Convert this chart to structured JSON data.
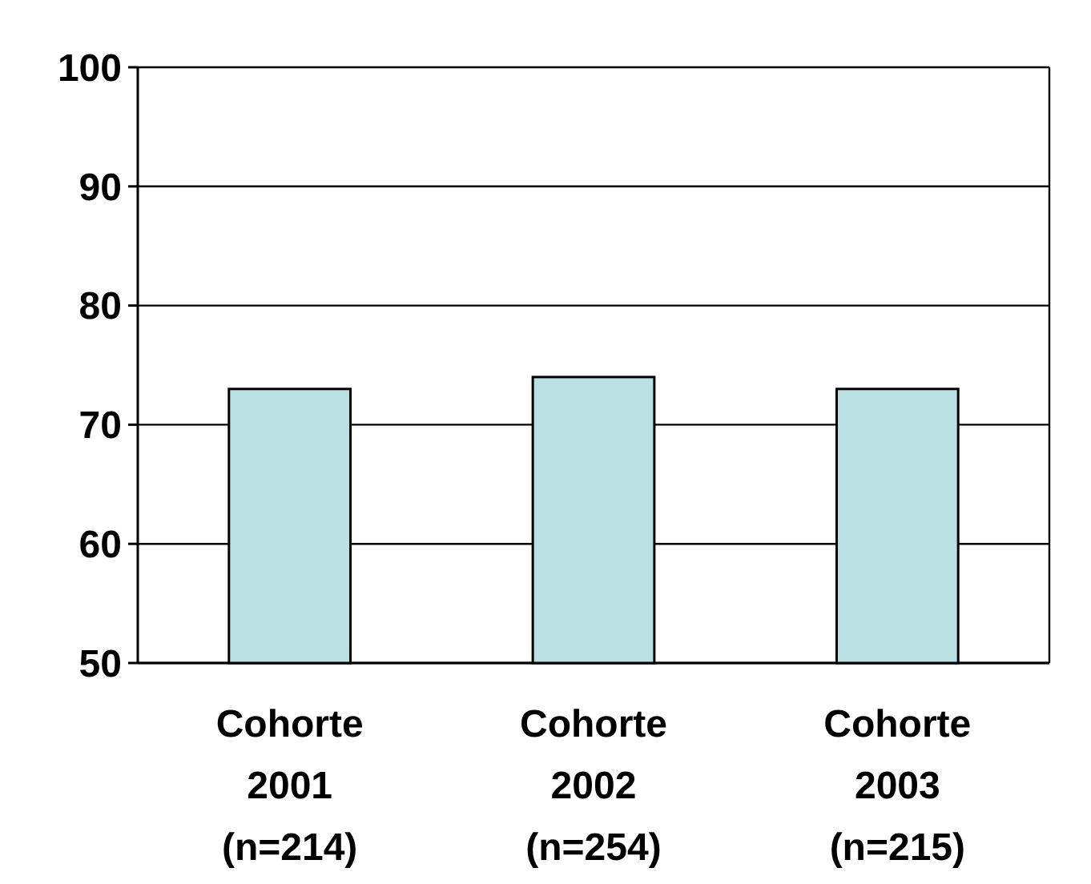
{
  "chart_data": {
    "type": "bar",
    "categories": [
      "Cohorte\n2001\n(n=214)",
      "Cohorte\n2002\n(n=254)",
      "Cohorte\n2003\n(n=215)"
    ],
    "values": [
      73,
      74,
      73
    ],
    "color": "#bbe0e3",
    "ylim": [
      50,
      100
    ],
    "yticks": [
      50,
      60,
      70,
      80,
      90,
      100
    ],
    "grid": "y"
  }
}
